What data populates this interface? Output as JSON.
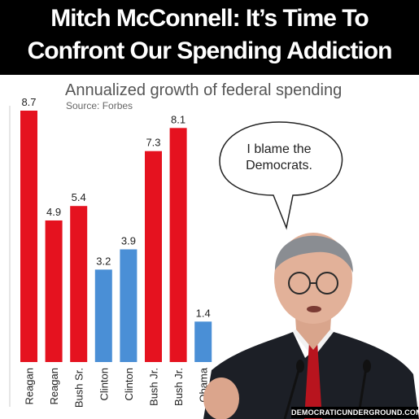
{
  "headline": {
    "line1": "Mitch McConnell: It’s Time To",
    "line2": "Confront Our Spending Addiction"
  },
  "chart_data": {
    "type": "bar",
    "title": "Annualized growth of federal spending",
    "subtitle": "Source: Forbes",
    "categories": [
      "Reagan",
      "Reagan",
      "Bush Sr.",
      "Clinton",
      "Clinton",
      "Bush Jr.",
      "Bush Jr.",
      "Obama"
    ],
    "values": [
      8.7,
      4.9,
      5.4,
      3.2,
      3.9,
      7.3,
      8.1,
      1.4
    ],
    "party_colors": [
      "#e5121f",
      "#e5121f",
      "#e5121f",
      "#4a8fd6",
      "#4a8fd6",
      "#e5121f",
      "#e5121f",
      "#4a8fd6"
    ],
    "ylim": [
      0,
      8.7
    ],
    "grid": false,
    "colors": {
      "republican": "#e5121f",
      "democrat": "#4a8fd6"
    }
  },
  "speech_bubble": {
    "line1": "I blame the",
    "line2": "Democrats."
  },
  "watermark": "DEMOCRATICUNDERGROUND.COM"
}
